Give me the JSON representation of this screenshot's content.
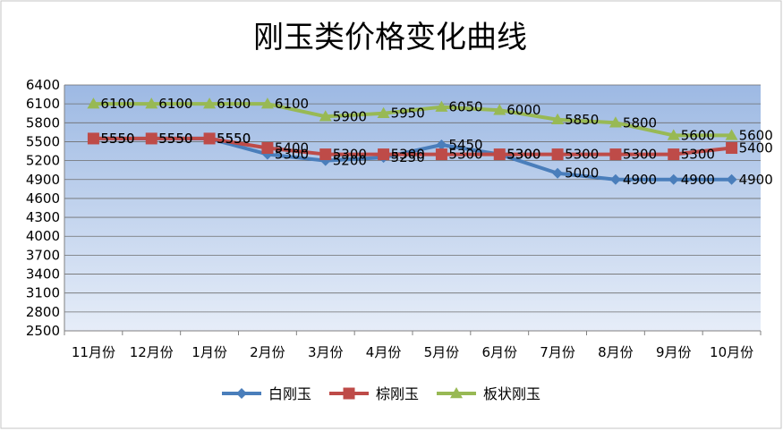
{
  "chart_data": {
    "type": "line",
    "title": "刚玉类价格变化曲线",
    "categories": [
      "11月份",
      "12月份",
      "1月份",
      "2月份",
      "3月份",
      "4月份",
      "5月份",
      "6月份",
      "7月份",
      "8月份",
      "9月份",
      "10月份"
    ],
    "ylim": [
      2500,
      6400
    ],
    "yticks": [
      6400,
      6100,
      5800,
      5500,
      5200,
      4900,
      4600,
      4300,
      4000,
      3700,
      3400,
      3100,
      2800,
      2500
    ],
    "grid": true,
    "legend_position": "bottom",
    "series": [
      {
        "name": "白刚玉",
        "color": "#4a7ebb",
        "marker": "diamond",
        "values": [
          5550,
          5550,
          5550,
          5300,
          5200,
          5250,
          5450,
          5300,
          5000,
          4900,
          4900,
          4900
        ]
      },
      {
        "name": "棕刚玉",
        "color": "#be4b48",
        "marker": "square",
        "values": [
          5550,
          5550,
          5550,
          5400,
          5300,
          5300,
          5300,
          5300,
          5300,
          5300,
          5300,
          5400
        ]
      },
      {
        "name": "板状刚玉",
        "color": "#98b954",
        "marker": "triangle",
        "values": [
          6100,
          6100,
          6100,
          6100,
          5900,
          5950,
          6050,
          6000,
          5850,
          5800,
          5600,
          5600
        ]
      }
    ]
  }
}
